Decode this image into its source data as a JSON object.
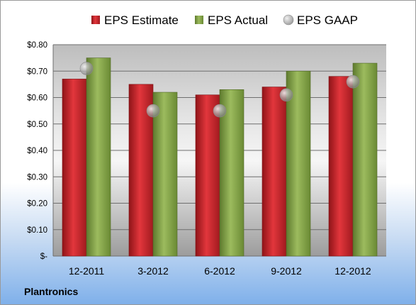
{
  "company": "Plantronics",
  "colors": {
    "estimate": "#c8262b",
    "actual": "#7f9f45",
    "gaap": "#9a9a9a"
  },
  "chart_data": {
    "type": "bar",
    "categories": [
      "12-2011",
      "3-2012",
      "6-2012",
      "9-2012",
      "12-2012"
    ],
    "series": [
      {
        "name": "EPS Estimate",
        "type": "bar",
        "values": [
          0.67,
          0.65,
          0.61,
          0.64,
          0.68
        ]
      },
      {
        "name": "EPS Actual",
        "type": "bar",
        "values": [
          0.75,
          0.62,
          0.63,
          0.7,
          0.73
        ]
      },
      {
        "name": "EPS GAAP",
        "type": "scatter",
        "values": [
          0.71,
          0.55,
          0.55,
          0.61,
          0.66
        ]
      }
    ],
    "ylim": [
      0,
      0.8
    ],
    "yticks": [
      0,
      0.1,
      0.2,
      0.3,
      0.4,
      0.5,
      0.6,
      0.7,
      0.8
    ],
    "ytick_labels": [
      "$-",
      "$0.10",
      "$0.20",
      "$0.30",
      "$0.40",
      "$0.50",
      "$0.60",
      "$0.70",
      "$0.80"
    ],
    "grid": true,
    "legend": "top"
  }
}
